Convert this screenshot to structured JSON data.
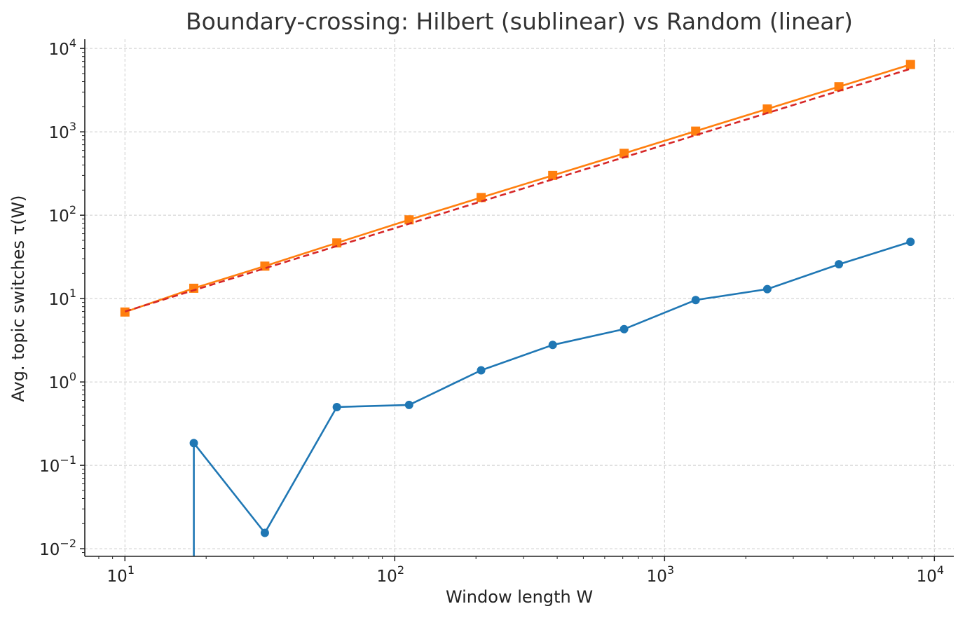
{
  "chart_data": {
    "type": "line",
    "title": "Boundary-crossing: Hilbert (sublinear) vs Random (linear)",
    "xlabel": "Window length W",
    "ylabel": "Avg. topic switches τ(W)",
    "xscale": "log",
    "yscale": "log",
    "xlim": [
      7.1,
      11800
    ],
    "ylim": [
      0.0081,
      12900
    ],
    "grid": true,
    "x_ticks": [
      {
        "value": 10,
        "base": "10",
        "exp": "1"
      },
      {
        "value": 100,
        "base": "10",
        "exp": "2"
      },
      {
        "value": 1000,
        "base": "10",
        "exp": "3"
      },
      {
        "value": 10000,
        "base": "10",
        "exp": "4"
      }
    ],
    "y_ticks": [
      {
        "value": 0.01,
        "base": "10",
        "exp": "−2"
      },
      {
        "value": 0.1,
        "base": "10",
        "exp": "−1"
      },
      {
        "value": 1,
        "base": "10",
        "exp": "0"
      },
      {
        "value": 10,
        "base": "10",
        "exp": "1"
      },
      {
        "value": 100,
        "base": "10",
        "exp": "2"
      },
      {
        "value": 1000,
        "base": "10",
        "exp": "3"
      },
      {
        "value": 10000,
        "base": "10",
        "exp": "4"
      }
    ],
    "series": [
      {
        "color": "#1f77b4",
        "marker": "circle",
        "linestyle": "solid",
        "x": [
          18,
          18,
          33,
          61,
          113,
          209,
          385,
          708,
          1304,
          2403,
          4427,
          8155
        ],
        "y": [
          0.0001,
          0.185,
          0.0155,
          0.5,
          0.53,
          1.38,
          2.78,
          4.3,
          9.6,
          13.0,
          25.8,
          48.0
        ],
        "show_marker": [
          false,
          true,
          true,
          true,
          true,
          true,
          true,
          true,
          true,
          true,
          true,
          true
        ]
      },
      {
        "color": "#ff7f0e",
        "marker": "square",
        "linestyle": "solid",
        "x": [
          10,
          18,
          33,
          61,
          113,
          209,
          385,
          708,
          1304,
          2403,
          4427,
          8155
        ],
        "y": [
          6.9,
          13.3,
          24.5,
          46.5,
          88,
          163,
          300,
          552,
          1020,
          1880,
          3480,
          6420
        ]
      },
      {
        "color": "#d62728",
        "marker": "none",
        "linestyle": "dashed",
        "x": [
          10,
          8155
        ],
        "y": [
          7.0,
          5700
        ]
      }
    ]
  }
}
